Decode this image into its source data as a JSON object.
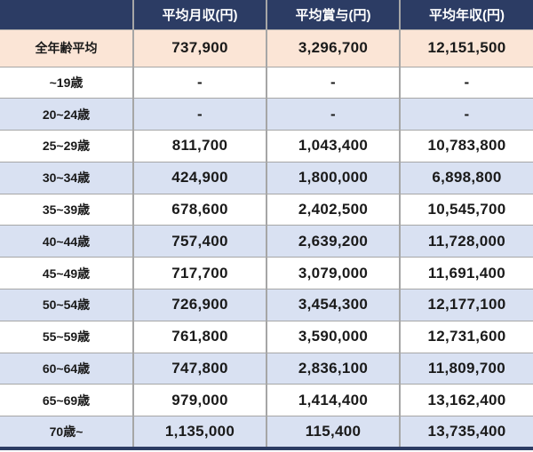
{
  "chart_data": {
    "type": "table",
    "columns": [
      "",
      "平均月収(円)",
      "平均賞与(円)",
      "平均年収(円)"
    ],
    "rows": [
      {
        "cells": [
          "全年齢平均",
          "737,900",
          "3,296,700",
          "12,151,500"
        ]
      },
      {
        "cells": [
          "~19歳",
          "-",
          "-",
          "-"
        ]
      },
      {
        "cells": [
          "20~24歳",
          "-",
          "-",
          "-"
        ]
      },
      {
        "cells": [
          "25~29歳",
          "811,700",
          "1,043,400",
          "10,783,800"
        ]
      },
      {
        "cells": [
          "30~34歳",
          "424,900",
          "1,800,000",
          "6,898,800"
        ]
      },
      {
        "cells": [
          "35~39歳",
          "678,600",
          "2,402,500",
          "10,545,700"
        ]
      },
      {
        "cells": [
          "40~44歳",
          "757,400",
          "2,639,200",
          "11,728,000"
        ]
      },
      {
        "cells": [
          "45~49歳",
          "717,700",
          "3,079,000",
          "11,691,400"
        ]
      },
      {
        "cells": [
          "50~54歳",
          "726,900",
          "3,454,300",
          "12,177,100"
        ]
      },
      {
        "cells": [
          "55~59歳",
          "761,800",
          "3,590,000",
          "12,731,600"
        ]
      },
      {
        "cells": [
          "60~64歳",
          "747,800",
          "2,836,100",
          "11,809,700"
        ]
      },
      {
        "cells": [
          "65~69歳",
          "979,000",
          "1,414,400",
          "13,162,400"
        ]
      },
      {
        "cells": [
          "70歳~",
          "1,135,000",
          "115,400",
          "13,735,400"
        ]
      }
    ]
  },
  "colors": {
    "header_bg": "#2c3c64",
    "header_text": "#ffffff",
    "highlight_row_bg": "#fbe5d6",
    "stripe_row_bg": "#d9e1f2",
    "row_bg": "#ffffff",
    "grid_line": "#a6a6a6",
    "body_text": "#1a1a1a",
    "bottom_bar": "#2c3c64"
  }
}
